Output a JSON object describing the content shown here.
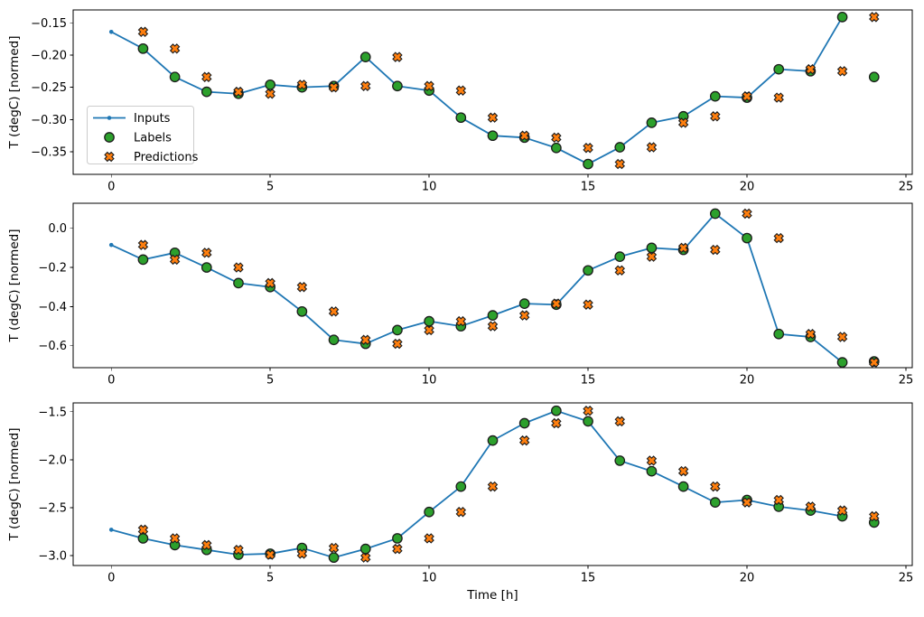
{
  "figure": {
    "background": "#ffffff",
    "xlabel": "Time [h]",
    "ylabel": "T (degC) [normed]"
  },
  "colors": {
    "inputs": "#1f77b4",
    "labels": "#2ca02c",
    "predictions": "#ff7f0e",
    "marker_edge": "#1c1c1c",
    "axis": "#000000",
    "legend_border": "#cccccc",
    "legend_bg": "rgba(255,255,255,0.85)"
  },
  "legend": {
    "position": "center left of subplot 1",
    "entries": [
      "Inputs",
      "Labels",
      "Predictions"
    ]
  },
  "chart_data": [
    {
      "type": "line",
      "ylabel": "T (degC) [normed]",
      "xlabel": "",
      "xlim": [
        -1.2,
        25.2
      ],
      "ylim": [
        -0.385,
        -0.13
      ],
      "xticks": [
        0,
        5,
        10,
        15,
        20,
        25
      ],
      "xtick_labels": [
        "0",
        "5",
        "10",
        "15",
        "20",
        "25"
      ],
      "yticks": [
        -0.15,
        -0.2,
        -0.25,
        -0.3,
        -0.35
      ],
      "ytick_labels": [
        "−0.15",
        "−0.20",
        "−0.25",
        "−0.30",
        "−0.35"
      ],
      "series": [
        {
          "name": "Inputs",
          "kind": "line-dot",
          "x": [
            0,
            1,
            2,
            3,
            4,
            5,
            6,
            7,
            8,
            9,
            10,
            11,
            12,
            13,
            14,
            15,
            16,
            17,
            18,
            19,
            20,
            21,
            22,
            23
          ],
          "y": [
            -0.164,
            -0.19,
            -0.234,
            -0.257,
            -0.26,
            -0.246,
            -0.25,
            -0.248,
            -0.203,
            -0.248,
            -0.255,
            -0.297,
            -0.325,
            -0.328,
            -0.344,
            -0.369,
            -0.343,
            -0.305,
            -0.295,
            -0.264,
            -0.266,
            -0.222,
            -0.225,
            -0.141
          ]
        },
        {
          "name": "Labels",
          "kind": "scatter-circle",
          "x": [
            1,
            2,
            3,
            4,
            5,
            6,
            7,
            8,
            9,
            10,
            11,
            12,
            13,
            14,
            15,
            16,
            17,
            18,
            19,
            20,
            21,
            22,
            23,
            24
          ],
          "y": [
            -0.19,
            -0.234,
            -0.257,
            -0.26,
            -0.246,
            -0.25,
            -0.248,
            -0.203,
            -0.248,
            -0.255,
            -0.297,
            -0.325,
            -0.328,
            -0.344,
            -0.369,
            -0.343,
            -0.305,
            -0.295,
            -0.264,
            -0.266,
            -0.222,
            -0.225,
            -0.141,
            -0.234
          ]
        },
        {
          "name": "Predictions",
          "kind": "scatter-x",
          "x": [
            1,
            2,
            3,
            4,
            5,
            6,
            7,
            8,
            9,
            10,
            11,
            12,
            13,
            14,
            15,
            16,
            17,
            18,
            19,
            20,
            21,
            22,
            23,
            24
          ],
          "y": [
            -0.164,
            -0.19,
            -0.234,
            -0.257,
            -0.26,
            -0.246,
            -0.25,
            -0.248,
            -0.203,
            -0.248,
            -0.255,
            -0.297,
            -0.325,
            -0.328,
            -0.344,
            -0.369,
            -0.343,
            -0.305,
            -0.295,
            -0.264,
            -0.266,
            -0.222,
            -0.225,
            -0.141
          ]
        }
      ]
    },
    {
      "type": "line",
      "ylabel": "T (degC) [normed]",
      "xlabel": "",
      "xlim": [
        -1.2,
        25.2
      ],
      "ylim": [
        -0.712,
        0.128
      ],
      "xticks": [
        0,
        5,
        10,
        15,
        20,
        25
      ],
      "xtick_labels": [
        "0",
        "5",
        "10",
        "15",
        "20",
        "25"
      ],
      "yticks": [
        0.0,
        -0.2,
        -0.4,
        -0.6
      ],
      "ytick_labels": [
        "0.0",
        "−0.2",
        "−0.4",
        "−0.6"
      ],
      "series": [
        {
          "name": "Inputs",
          "kind": "line-dot",
          "x": [
            0,
            1,
            2,
            3,
            4,
            5,
            6,
            7,
            8,
            9,
            10,
            11,
            12,
            13,
            14,
            15,
            16,
            17,
            18,
            19,
            20,
            21,
            22,
            23
          ],
          "y": [
            -0.085,
            -0.16,
            -0.125,
            -0.2,
            -0.28,
            -0.3,
            -0.425,
            -0.57,
            -0.59,
            -0.52,
            -0.475,
            -0.5,
            -0.445,
            -0.385,
            -0.39,
            -0.215,
            -0.145,
            -0.1,
            -0.11,
            0.075,
            -0.05,
            -0.54,
            -0.555,
            -0.685
          ]
        },
        {
          "name": "Labels",
          "kind": "scatter-circle",
          "x": [
            1,
            2,
            3,
            4,
            5,
            6,
            7,
            8,
            9,
            10,
            11,
            12,
            13,
            14,
            15,
            16,
            17,
            18,
            19,
            20,
            21,
            22,
            23,
            24
          ],
          "y": [
            -0.16,
            -0.125,
            -0.2,
            -0.28,
            -0.3,
            -0.425,
            -0.57,
            -0.59,
            -0.52,
            -0.475,
            -0.5,
            -0.445,
            -0.385,
            -0.39,
            -0.215,
            -0.145,
            -0.1,
            -0.11,
            0.075,
            -0.05,
            -0.54,
            -0.555,
            -0.685,
            -0.68
          ]
        },
        {
          "name": "Predictions",
          "kind": "scatter-x",
          "x": [
            1,
            2,
            3,
            4,
            5,
            6,
            7,
            8,
            9,
            10,
            11,
            12,
            13,
            14,
            15,
            16,
            17,
            18,
            19,
            20,
            21,
            22,
            23,
            24
          ],
          "y": [
            -0.085,
            -0.16,
            -0.125,
            -0.2,
            -0.28,
            -0.3,
            -0.425,
            -0.57,
            -0.59,
            -0.52,
            -0.475,
            -0.5,
            -0.445,
            -0.385,
            -0.39,
            -0.215,
            -0.145,
            -0.1,
            -0.11,
            0.075,
            -0.05,
            -0.54,
            -0.555,
            -0.685
          ]
        }
      ]
    },
    {
      "type": "line",
      "ylabel": "T (degC) [normed]",
      "xlabel": "Time [h]",
      "xlim": [
        -1.2,
        25.2
      ],
      "ylim": [
        -3.103,
        -1.408
      ],
      "xticks": [
        0,
        5,
        10,
        15,
        20,
        25
      ],
      "xtick_labels": [
        "0",
        "5",
        "10",
        "15",
        "20",
        "25"
      ],
      "yticks": [
        -1.5,
        -2.0,
        -2.5,
        -3.0
      ],
      "ytick_labels": [
        "−1.5",
        "−2.0",
        "−2.5",
        "−3.0"
      ],
      "series": [
        {
          "name": "Inputs",
          "kind": "line-dot",
          "x": [
            0,
            1,
            2,
            3,
            4,
            5,
            6,
            7,
            8,
            9,
            10,
            11,
            12,
            13,
            14,
            15,
            16,
            17,
            18,
            19,
            20,
            21,
            22,
            23
          ],
          "y": [
            -2.73,
            -2.82,
            -2.89,
            -2.94,
            -2.99,
            -2.98,
            -2.92,
            -3.02,
            -2.93,
            -2.82,
            -2.545,
            -2.28,
            -1.8,
            -1.62,
            -1.49,
            -1.6,
            -2.01,
            -2.12,
            -2.28,
            -2.445,
            -2.42,
            -2.49,
            -2.53,
            -2.59
          ]
        },
        {
          "name": "Labels",
          "kind": "scatter-circle",
          "x": [
            1,
            2,
            3,
            4,
            5,
            6,
            7,
            8,
            9,
            10,
            11,
            12,
            13,
            14,
            15,
            16,
            17,
            18,
            19,
            20,
            21,
            22,
            23,
            24
          ],
          "y": [
            -2.82,
            -2.89,
            -2.94,
            -2.99,
            -2.98,
            -2.92,
            -3.02,
            -2.93,
            -2.82,
            -2.545,
            -2.28,
            -1.8,
            -1.62,
            -1.49,
            -1.6,
            -2.01,
            -2.12,
            -2.28,
            -2.445,
            -2.42,
            -2.49,
            -2.53,
            -2.59,
            -2.655
          ]
        },
        {
          "name": "Predictions",
          "kind": "scatter-x",
          "x": [
            1,
            2,
            3,
            4,
            5,
            6,
            7,
            8,
            9,
            10,
            11,
            12,
            13,
            14,
            15,
            16,
            17,
            18,
            19,
            20,
            21,
            22,
            23,
            24
          ],
          "y": [
            -2.73,
            -2.82,
            -2.89,
            -2.94,
            -2.99,
            -2.98,
            -2.92,
            -3.02,
            -2.93,
            -2.82,
            -2.545,
            -2.28,
            -1.8,
            -1.62,
            -1.49,
            -1.6,
            -2.01,
            -2.12,
            -2.28,
            -2.445,
            -2.42,
            -2.49,
            -2.53,
            -2.59
          ]
        }
      ]
    }
  ]
}
